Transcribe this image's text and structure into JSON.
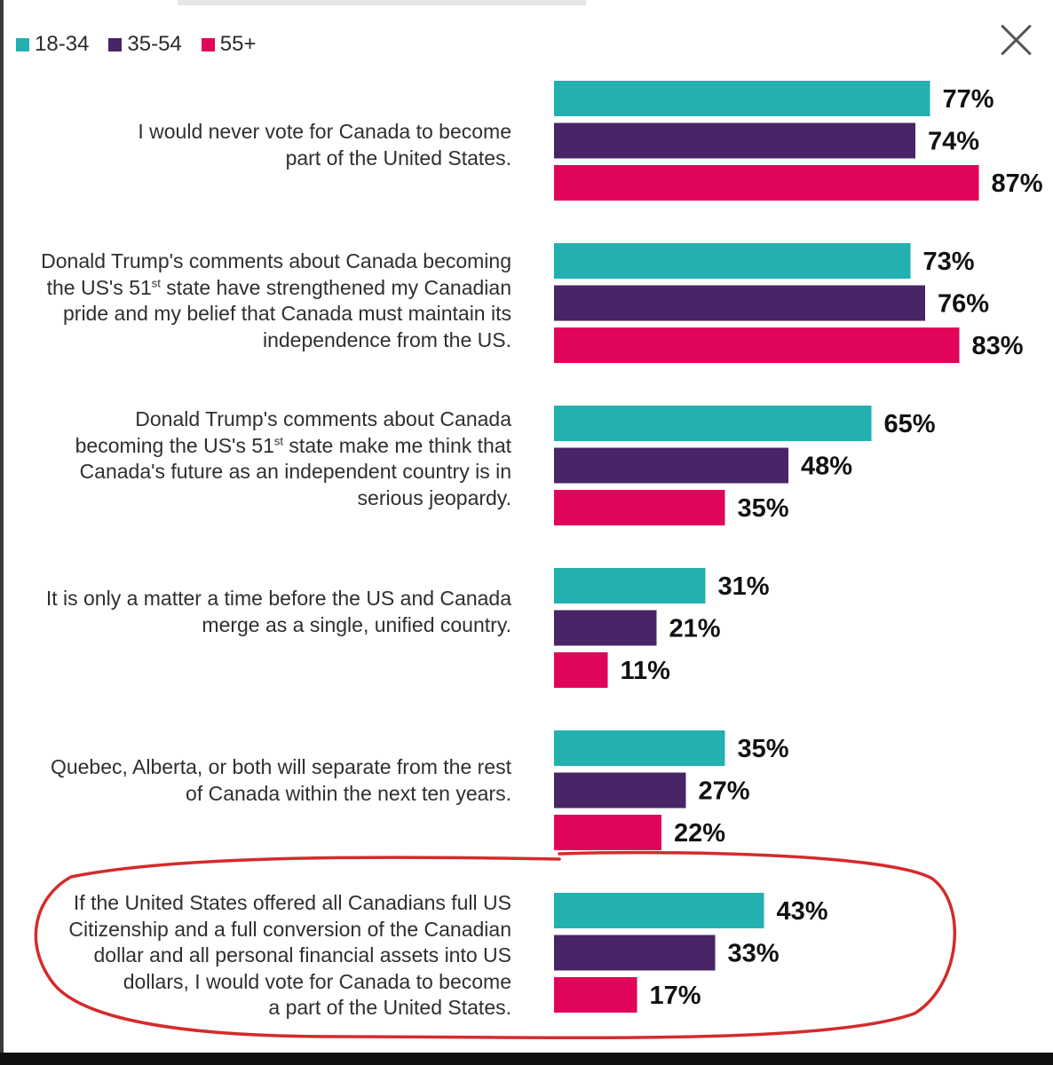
{
  "colors": {
    "age_18_34": "#22b0b0",
    "age_35_54": "#482566",
    "age_55_plus": "#e0055a",
    "highlight": "#d42b2b"
  },
  "legend": [
    "18-34",
    "35-54",
    "55+"
  ],
  "close_icon": "close-x-icon",
  "statements": [
    {
      "lines": [
        "I would never vote for Canada to become",
        "part of the United States."
      ]
    },
    {
      "lines": [
        "Donald Trump's comments about Canada becoming",
        "the US's 51|st| state have strengthened my Canadian",
        "pride and my belief that Canada must maintain its",
        "independence from the US."
      ]
    },
    {
      "lines": [
        "Donald Trump's comments about Canada",
        "becoming the US's 51|st| state make me think that",
        "Canada's future as an independent country is in",
        "serious jeopardy."
      ]
    },
    {
      "lines": [
        "It is only a matter a time before the US and Canada",
        "merge as a single, unified country."
      ]
    },
    {
      "lines": [
        "Quebec, Alberta, or both will separate from the rest",
        "of Canada within the next ten years."
      ]
    },
    {
      "lines": [
        "If the United States offered all Canadians full US",
        "Citizenship and a full conversion of the Canadian",
        "dollar and all personal financial assets into US",
        "dollars, I would vote for Canada to become",
        "a part of the United States."
      ]
    }
  ],
  "chart_data": {
    "type": "bar",
    "orientation": "horizontal",
    "value_format": "{v}%",
    "categories": [
      "I would never vote for Canada to become part of the United States.",
      "Donald Trump's comments about Canada becoming the US's 51st state have strengthened my Canadian pride and my belief that Canada must maintain its independence from the US.",
      "Donald Trump's comments about Canada becoming the US's 51st state make me think that Canada's future as an independent country is in serious jeopardy.",
      "It is only a matter a time before the US and Canada merge as a single, unified country.",
      "Quebec, Alberta, or both will separate from the rest of Canada within the next ten years.",
      "If the United States offered all Canadians full US Citizenship and a full conversion of the Canadian dollar and all personal financial assets into US dollars, I would vote for Canada to become a part of the United States."
    ],
    "series": [
      {
        "name": "18-34",
        "values": [
          77,
          73,
          65,
          31,
          35,
          43
        ]
      },
      {
        "name": "35-54",
        "values": [
          74,
          76,
          48,
          21,
          27,
          33
        ]
      },
      {
        "name": "55+",
        "values": [
          87,
          83,
          35,
          11,
          22,
          17
        ]
      }
    ],
    "xlim": [
      0,
      100
    ],
    "legend_position": "top-left",
    "grid": false,
    "highlighted_category": 5
  }
}
